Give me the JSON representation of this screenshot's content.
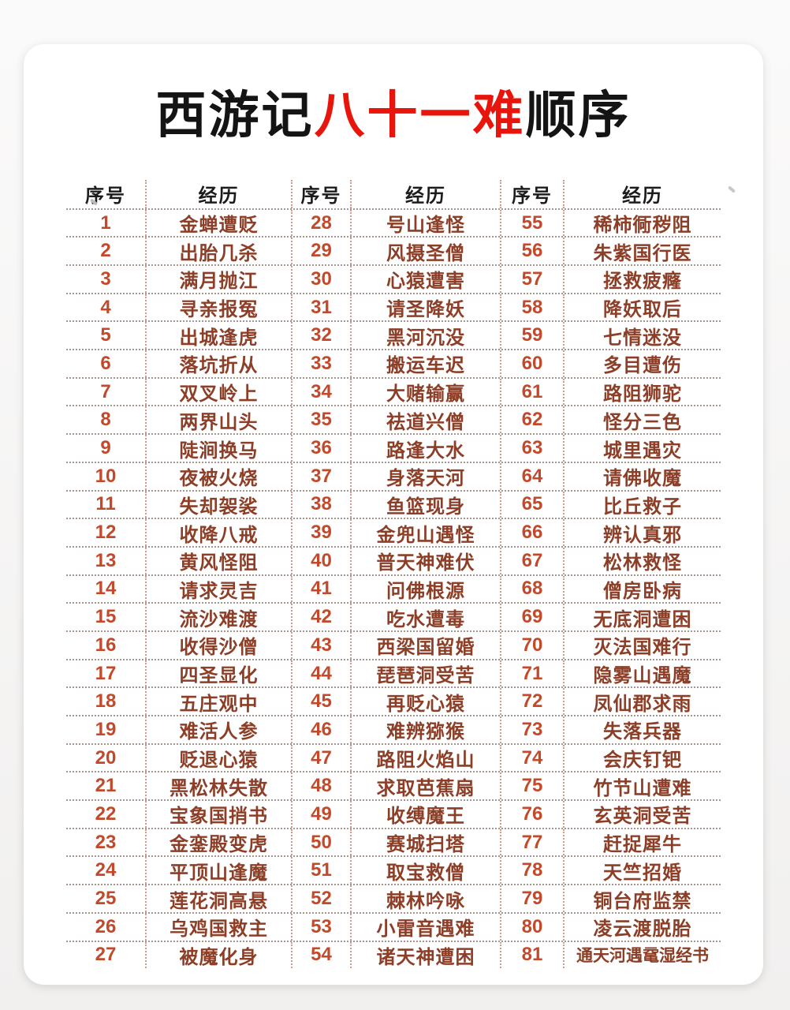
{
  "title": {
    "part1": "西游记",
    "highlight": "八十一难",
    "part2": "顺序"
  },
  "colors": {
    "title_highlight": "#e8150c",
    "seq_number": "#c3492a",
    "difficulty_text": "#8d3e27",
    "horizontal_divider": "#a5968e",
    "vertical_divider": "#d59a8d"
  },
  "table": {
    "header": {
      "num_label": "序号",
      "exp_label": "经历"
    },
    "groups": [
      {
        "rows": [
          {
            "num": "1",
            "exp": "金蝉遭贬"
          },
          {
            "num": "2",
            "exp": "出胎几杀"
          },
          {
            "num": "3",
            "exp": "满月抛江"
          },
          {
            "num": "4",
            "exp": "寻亲报冤"
          },
          {
            "num": "5",
            "exp": "出城逢虎"
          },
          {
            "num": "6",
            "exp": "落坑折从"
          },
          {
            "num": "7",
            "exp": "双叉岭上"
          },
          {
            "num": "8",
            "exp": "两界山头"
          },
          {
            "num": "9",
            "exp": "陡涧换马"
          },
          {
            "num": "10",
            "exp": "夜被火烧"
          },
          {
            "num": "11",
            "exp": "失却袈裟"
          },
          {
            "num": "12",
            "exp": "收降八戒"
          },
          {
            "num": "13",
            "exp": "黄风怪阻"
          },
          {
            "num": "14",
            "exp": "请求灵吉"
          },
          {
            "num": "15",
            "exp": "流沙难渡"
          },
          {
            "num": "16",
            "exp": "收得沙僧"
          },
          {
            "num": "17",
            "exp": "四圣显化"
          },
          {
            "num": "18",
            "exp": "五庄观中"
          },
          {
            "num": "19",
            "exp": "难活人参"
          },
          {
            "num": "20",
            "exp": "贬退心猿"
          },
          {
            "num": "21",
            "exp": "黑松林失散"
          },
          {
            "num": "22",
            "exp": "宝象国捎书"
          },
          {
            "num": "23",
            "exp": "金銮殿变虎"
          },
          {
            "num": "24",
            "exp": "平顶山逢魔"
          },
          {
            "num": "25",
            "exp": "莲花洞高悬"
          },
          {
            "num": "26",
            "exp": "乌鸡国救主"
          },
          {
            "num": "27",
            "exp": "被魔化身"
          }
        ]
      },
      {
        "rows": [
          {
            "num": "28",
            "exp": "号山逢怪"
          },
          {
            "num": "29",
            "exp": "风摄圣僧"
          },
          {
            "num": "30",
            "exp": "心猿遭害"
          },
          {
            "num": "31",
            "exp": "请圣降妖"
          },
          {
            "num": "32",
            "exp": "黑河沉没"
          },
          {
            "num": "33",
            "exp": "搬运车迟"
          },
          {
            "num": "34",
            "exp": "大赌输赢"
          },
          {
            "num": "35",
            "exp": "祛道兴僧"
          },
          {
            "num": "36",
            "exp": "路逢大水"
          },
          {
            "num": "37",
            "exp": "身落天河"
          },
          {
            "num": "38",
            "exp": "鱼篮现身"
          },
          {
            "num": "39",
            "exp": "金兜山遇怪"
          },
          {
            "num": "40",
            "exp": "普天神难伏"
          },
          {
            "num": "41",
            "exp": "问佛根源"
          },
          {
            "num": "42",
            "exp": "吃水遭毒"
          },
          {
            "num": "43",
            "exp": "西梁国留婚"
          },
          {
            "num": "44",
            "exp": "琵琶洞受苦"
          },
          {
            "num": "45",
            "exp": "再贬心猿"
          },
          {
            "num": "46",
            "exp": "难辨猕猴"
          },
          {
            "num": "47",
            "exp": "路阻火焰山"
          },
          {
            "num": "48",
            "exp": "求取芭蕉扇"
          },
          {
            "num": "49",
            "exp": "收缚魔王"
          },
          {
            "num": "50",
            "exp": "赛城扫塔"
          },
          {
            "num": "51",
            "exp": "取宝救僧"
          },
          {
            "num": "52",
            "exp": "棘林吟咏"
          },
          {
            "num": "53",
            "exp": "小雷音遇难"
          },
          {
            "num": "54",
            "exp": "诸天神遭困"
          }
        ]
      },
      {
        "rows": [
          {
            "num": "55",
            "exp": "稀柿衕秽阻"
          },
          {
            "num": "56",
            "exp": "朱紫国行医"
          },
          {
            "num": "57",
            "exp": "拯救疲癃"
          },
          {
            "num": "58",
            "exp": "降妖取后"
          },
          {
            "num": "59",
            "exp": "七情迷没"
          },
          {
            "num": "60",
            "exp": "多目遭伤"
          },
          {
            "num": "61",
            "exp": "路阻狮驼"
          },
          {
            "num": "62",
            "exp": "怪分三色"
          },
          {
            "num": "63",
            "exp": "城里遇灾"
          },
          {
            "num": "64",
            "exp": "请佛收魔"
          },
          {
            "num": "65",
            "exp": "比丘救子"
          },
          {
            "num": "66",
            "exp": "辨认真邪"
          },
          {
            "num": "67",
            "exp": "松林救怪"
          },
          {
            "num": "68",
            "exp": "僧房卧病"
          },
          {
            "num": "69",
            "exp": "无底洞遭困"
          },
          {
            "num": "70",
            "exp": "灭法国难行"
          },
          {
            "num": "71",
            "exp": "隐雾山遇魔"
          },
          {
            "num": "72",
            "exp": "凤仙郡求雨"
          },
          {
            "num": "73",
            "exp": "失落兵器"
          },
          {
            "num": "74",
            "exp": "会庆钉钯"
          },
          {
            "num": "75",
            "exp": "竹节山遭难"
          },
          {
            "num": "76",
            "exp": "玄英洞受苦"
          },
          {
            "num": "77",
            "exp": "赶捉犀牛"
          },
          {
            "num": "78",
            "exp": "天竺招婚"
          },
          {
            "num": "79",
            "exp": "铜台府监禁"
          },
          {
            "num": "80",
            "exp": "凌云渡脱胎"
          },
          {
            "num": "81",
            "exp": "通天河遇鼋湿经书"
          }
        ]
      }
    ]
  }
}
